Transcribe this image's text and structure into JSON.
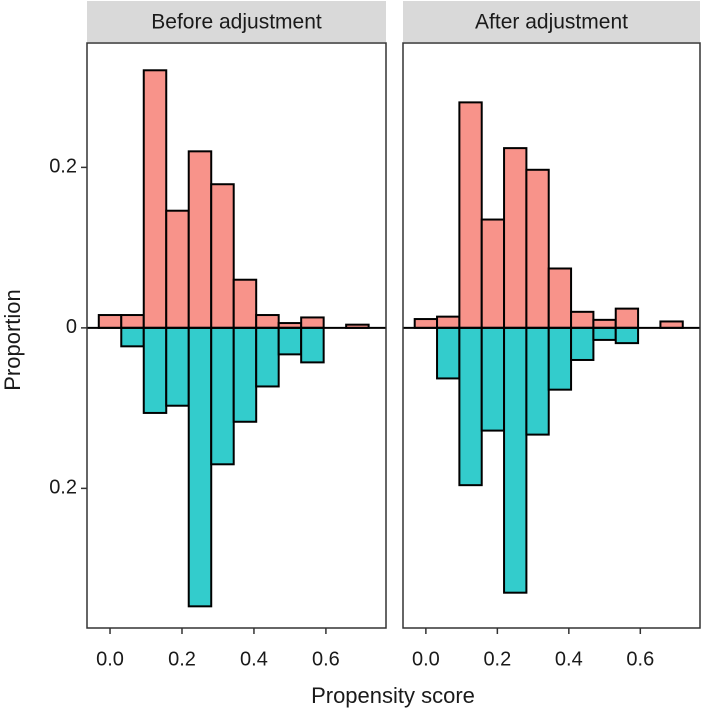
{
  "xlabel": "Propensity score",
  "ylabel": "Proportion",
  "chart_data": [
    {
      "type": "histogram",
      "title": "Before adjustment",
      "bins": [
        -0.03125,
        0.03125,
        0.09375,
        0.15625,
        0.21875,
        0.28125,
        0.34375,
        0.40625,
        0.46875,
        0.53125,
        0.59375,
        0.65625,
        0.71875
      ],
      "series": [
        {
          "color": "#f8938a",
          "values": [
            0.016,
            0.016,
            0.321,
            0.146,
            0.22,
            0.179,
            0.06,
            0.016,
            0.006,
            0.013,
            0,
            0.004
          ]
        },
        {
          "color": "#33cccc",
          "values": [
            0,
            -0.023,
            -0.106,
            -0.097,
            -0.347,
            -0.17,
            -0.117,
            -0.073,
            -0.033,
            -0.043,
            0,
            0
          ]
        }
      ],
      "xlim": [
        -0.064,
        0.767
      ],
      "ylim": [
        -0.374,
        0.355
      ],
      "xticks": [
        {
          "value": 0,
          "label": "0.0"
        },
        0.2,
        0.4,
        0.6
      ],
      "yticks": [
        {
          "value": -0.2,
          "label": "0.2"
        },
        0,
        0.2
      ]
    },
    {
      "type": "histogram",
      "title": "After adjustment",
      "bins": [
        -0.03125,
        0.03125,
        0.09375,
        0.15625,
        0.21875,
        0.28125,
        0.34375,
        0.40625,
        0.46875,
        0.53125,
        0.59375,
        0.65625,
        0.71875
      ],
      "series": [
        {
          "color": "#f8938a",
          "values": [
            0.011,
            0.014,
            0.281,
            0.135,
            0.224,
            0.197,
            0.074,
            0.02,
            0.01,
            0.024,
            0,
            0.008
          ]
        },
        {
          "color": "#33cccc",
          "values": [
            0,
            -0.063,
            -0.196,
            -0.128,
            -0.33,
            -0.133,
            -0.077,
            -0.04,
            -0.015,
            -0.019,
            0,
            0
          ]
        }
      ],
      "xlim": [
        -0.064,
        0.767
      ],
      "ylim": [
        -0.374,
        0.355
      ],
      "xticks": [
        {
          "value": 0,
          "label": "0.0"
        },
        0.2,
        0.4,
        0.6
      ]
    }
  ]
}
